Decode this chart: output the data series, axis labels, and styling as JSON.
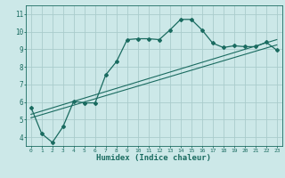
{
  "xlabel": "Humidex (Indice chaleur)",
  "ylabel": "",
  "bg_color": "#cce8e8",
  "grid_color": "#aacccc",
  "line_color": "#1a6b60",
  "xlim": [
    -0.5,
    23.5
  ],
  "ylim": [
    3.5,
    11.5
  ],
  "xticks": [
    0,
    1,
    2,
    3,
    4,
    5,
    6,
    7,
    8,
    9,
    10,
    11,
    12,
    13,
    14,
    15,
    16,
    17,
    18,
    19,
    20,
    21,
    22,
    23
  ],
  "yticks": [
    4,
    5,
    6,
    7,
    8,
    9,
    10,
    11
  ],
  "main_x": [
    0,
    1,
    2,
    3,
    4,
    5,
    6,
    7,
    8,
    9,
    10,
    11,
    12,
    13,
    14,
    15,
    16,
    17,
    18,
    19,
    20,
    21,
    22,
    23
  ],
  "main_y": [
    5.7,
    4.2,
    3.7,
    4.6,
    6.05,
    5.95,
    5.95,
    7.55,
    8.3,
    9.55,
    9.6,
    9.6,
    9.55,
    10.1,
    10.7,
    10.7,
    10.1,
    9.35,
    9.1,
    9.2,
    9.15,
    9.15,
    9.4,
    8.95
  ],
  "line2_x": [
    0,
    23
  ],
  "line2_y": [
    5.3,
    9.55
  ],
  "line3_x": [
    0,
    23
  ],
  "line3_y": [
    5.1,
    9.25
  ]
}
